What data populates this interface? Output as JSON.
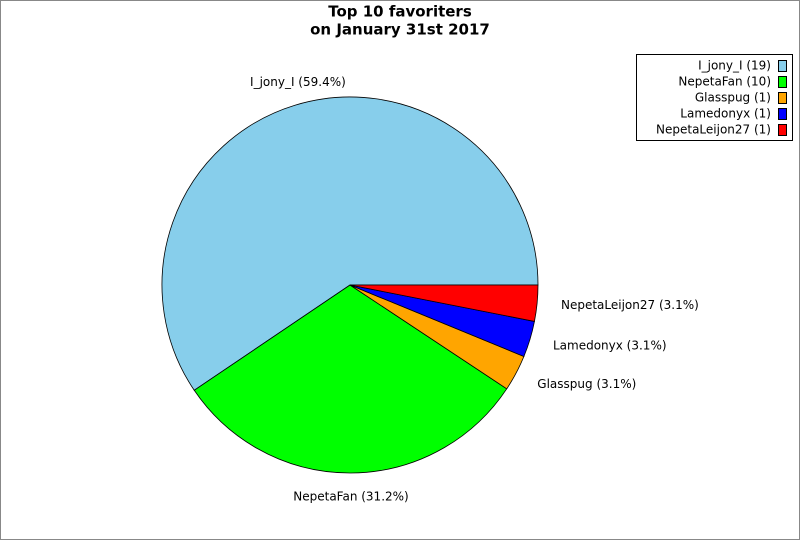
{
  "chart_data": {
    "type": "pie",
    "title": [
      "Top 10 favoriters",
      "on January 31st 2017"
    ],
    "categories": [
      "I_jony_I",
      "NepetaFan",
      "Glasspug",
      "Lamedonyx",
      "NepetaLeijon27"
    ],
    "values": [
      59.4,
      31.2,
      3.1,
      3.1,
      3.1
    ],
    "value_labels": [
      "I_jony_I (59.4%)",
      "NepetaFan (31.2%)",
      "Glasspug (3.1%)",
      "Lamedonyx (3.1%)",
      "NepetaLeijon27 (3.1%)"
    ],
    "legend_labels": [
      "I_jony_I (19)",
      "NepetaFan (10)",
      "Glasspug (1)",
      "Lamedonyx (1)",
      "NepetaLeijon27 (1)"
    ],
    "colors": [
      "#87ceeb",
      "#00ff00",
      "#ffa500",
      "#0000ff",
      "#ff0000"
    ],
    "legend": "upper right"
  }
}
